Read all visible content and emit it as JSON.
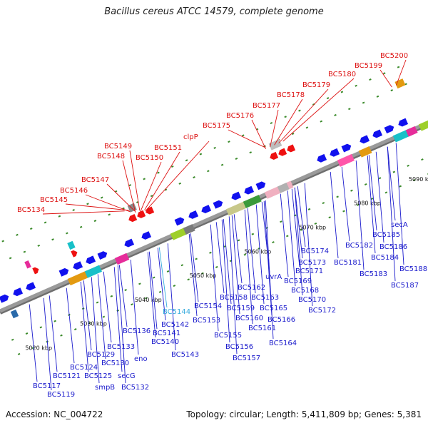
{
  "title": "Bacillus cereus ATCC 14579, complete genome",
  "footer": {
    "accession": "Accession: NC_004722",
    "summary": "Topology: circular; Length: 5,411,809 bp; Genes: 5,381"
  },
  "colors": {
    "top_label": "#dd1111",
    "bottom_label": "#1a1acc",
    "highlight_label": "#33aadd",
    "forward_gene": "#1111ee",
    "reverse_gene": "#ee1111",
    "backbone": "#9a9a9a",
    "tick": "#3a8a2a"
  },
  "kbp_ticks": [
    "5020 kbp",
    "5030 kbp",
    "5040 kbp",
    "5050 kbp",
    "5060 kbp",
    "5070 kbp",
    "5080 kbp",
    "5090 kbp"
  ],
  "top_labels": [
    "BC5134",
    "BC5145",
    "BC5146",
    "BC5147",
    "BC5148",
    "BC5149",
    "BC5150",
    "BC5151",
    "clpP",
    "BC5175",
    "BC5176",
    "BC5177",
    "BC5178",
    "BC5179",
    "BC5180",
    "BC5199",
    "BC5200"
  ],
  "bottom_labels": [
    "BC5117",
    "BC5119",
    "BC5121",
    "BC5124",
    "BC5125",
    "smpB",
    "BC5129",
    "BC5130",
    "secG",
    "BC5132",
    "BC5133",
    "BC5136",
    "eno",
    "BC5140",
    "BC5141",
    "BC5142",
    "BC5143",
    "BC5144",
    "BC5153",
    "BC5154",
    "BC5155",
    "BC5156",
    "BC5157",
    "BC5158",
    "BC5159",
    "BC5160",
    "BC5161",
    "BC5162",
    "BC5163",
    "BC5164",
    "BC5165",
    "BC5166",
    "uvrA",
    "BC5168",
    "BC5169",
    "BC5170",
    "BC5171",
    "BC5172",
    "BC5173",
    "BC5174",
    "BC5181",
    "BC5182",
    "BC5183",
    "BC5184",
    "BC5185",
    "BC5186",
    "secA",
    "BC5187",
    "BC5188"
  ]
}
